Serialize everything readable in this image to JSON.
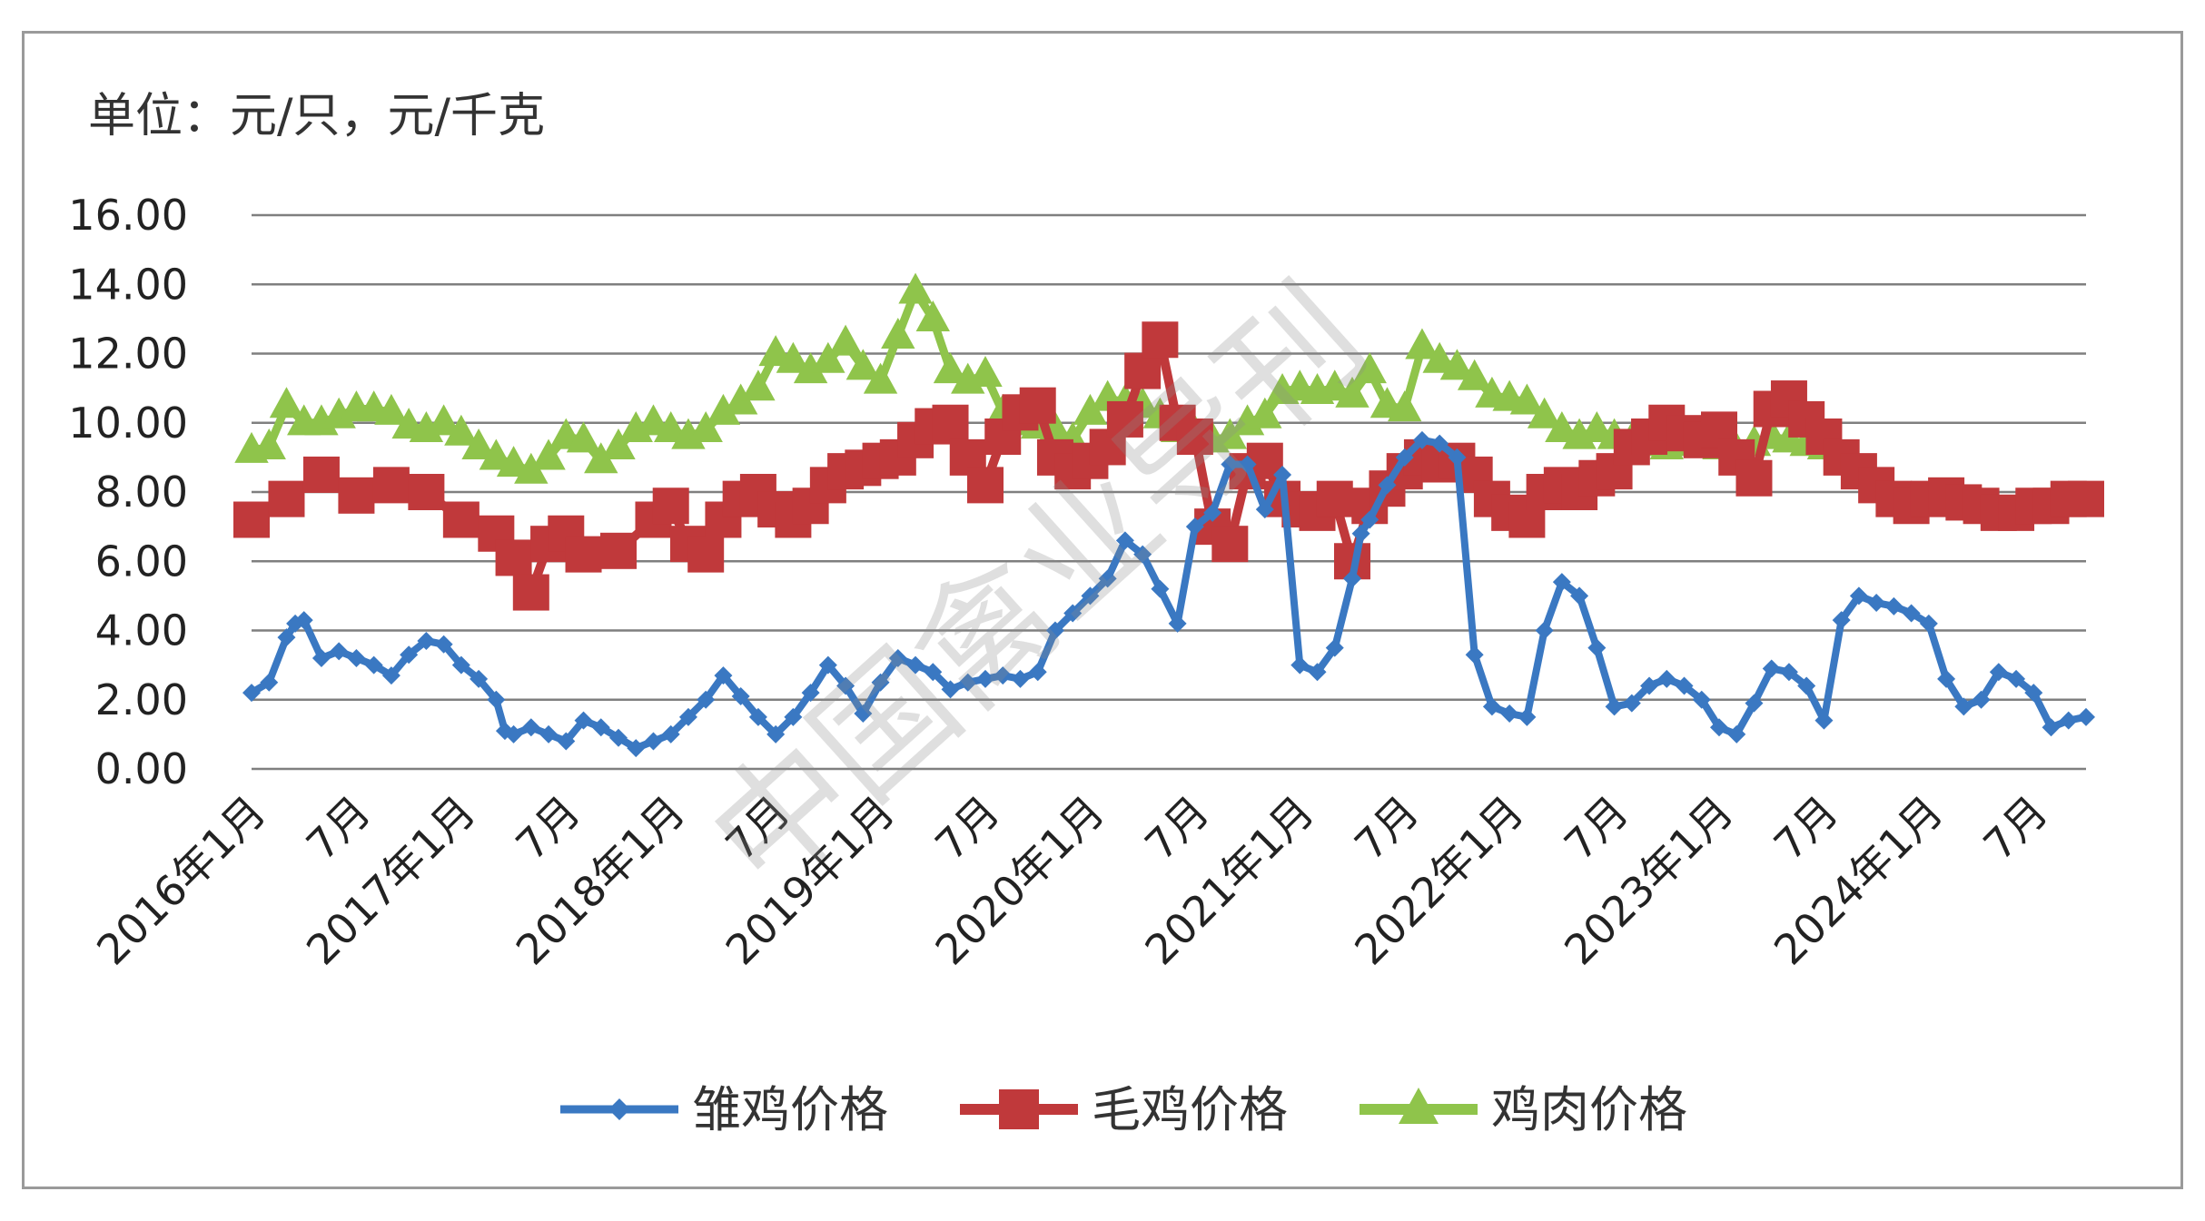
{
  "chart_data": {
    "type": "line",
    "title": "",
    "unit_label": "单位：元/只，元/千克",
    "xlabel": "",
    "ylabel": "",
    "ylim": [
      0,
      16
    ],
    "yticks": [
      "0.00",
      "2.00",
      "4.00",
      "6.00",
      "8.00",
      "10.00",
      "12.00",
      "14.00",
      "16.00"
    ],
    "grid": true,
    "legend_position": "bottom",
    "x_tick_labels": [
      "2016年1月",
      "7月",
      "2017年1月",
      "7月",
      "2018年1月",
      "7月",
      "2019年1月",
      "7月",
      "2020年1月",
      "7月",
      "2021年1月",
      "7月",
      "2022年1月",
      "7月",
      "2023年1月",
      "7月",
      "2024年1月",
      "7月"
    ],
    "x_range_months": [
      0,
      105
    ],
    "series": [
      {
        "name": "雏鸡价格",
        "color": "#3a78c2",
        "marker": "diamond",
        "points": [
          [
            0,
            2.2
          ],
          [
            1,
            2.5
          ],
          [
            2,
            3.8
          ],
          [
            2.5,
            4.2
          ],
          [
            3,
            4.3
          ],
          [
            4,
            3.2
          ],
          [
            5,
            3.4
          ],
          [
            6,
            3.2
          ],
          [
            7,
            3.0
          ],
          [
            8,
            2.7
          ],
          [
            9,
            3.3
          ],
          [
            10,
            3.7
          ],
          [
            11,
            3.6
          ],
          [
            12,
            3.0
          ],
          [
            13,
            2.6
          ],
          [
            14,
            2.0
          ],
          [
            14.5,
            1.1
          ],
          [
            15,
            1.0
          ],
          [
            16,
            1.2
          ],
          [
            17,
            1.0
          ],
          [
            18,
            0.8
          ],
          [
            19,
            1.4
          ],
          [
            20,
            1.2
          ],
          [
            21,
            0.9
          ],
          [
            22,
            0.6
          ],
          [
            23,
            0.8
          ],
          [
            24,
            1.0
          ],
          [
            25,
            1.5
          ],
          [
            26,
            2.0
          ],
          [
            27,
            2.7
          ],
          [
            28,
            2.1
          ],
          [
            29,
            1.5
          ],
          [
            30,
            1.0
          ],
          [
            31,
            1.5
          ],
          [
            32,
            2.2
          ],
          [
            33,
            3.0
          ],
          [
            34,
            2.4
          ],
          [
            35,
            1.6
          ],
          [
            36,
            2.5
          ],
          [
            37,
            3.2
          ],
          [
            38,
            3.0
          ],
          [
            39,
            2.8
          ],
          [
            40,
            2.3
          ],
          [
            41,
            2.5
          ],
          [
            42,
            2.6
          ],
          [
            43,
            2.7
          ],
          [
            44,
            2.6
          ],
          [
            45,
            2.8
          ],
          [
            46,
            4.0
          ],
          [
            47,
            4.5
          ],
          [
            48,
            5.0
          ],
          [
            49,
            5.5
          ],
          [
            50,
            6.6
          ],
          [
            51,
            6.2
          ],
          [
            52,
            5.2
          ],
          [
            53,
            4.2
          ],
          [
            54,
            7.0
          ],
          [
            55,
            7.4
          ],
          [
            56,
            8.8
          ],
          [
            57,
            8.8
          ],
          [
            58,
            7.5
          ],
          [
            59,
            8.5
          ],
          [
            60,
            3.0
          ],
          [
            61,
            2.8
          ],
          [
            62,
            3.5
          ],
          [
            63,
            5.5
          ],
          [
            63.5,
            6.8
          ],
          [
            64,
            7.2
          ],
          [
            65,
            8.2
          ],
          [
            66,
            9.0
          ],
          [
            67,
            9.5
          ],
          [
            68,
            9.4
          ],
          [
            69,
            9.0
          ],
          [
            70,
            3.3
          ],
          [
            71,
            1.8
          ],
          [
            72,
            1.6
          ],
          [
            73,
            1.5
          ],
          [
            74,
            4.0
          ],
          [
            75,
            5.4
          ],
          [
            76,
            5.0
          ],
          [
            77,
            3.5
          ],
          [
            78,
            1.8
          ],
          [
            79,
            1.9
          ],
          [
            80,
            2.4
          ],
          [
            81,
            2.6
          ],
          [
            82,
            2.4
          ],
          [
            83,
            2.0
          ],
          [
            84,
            1.2
          ],
          [
            85,
            1.0
          ],
          [
            86,
            1.9
          ],
          [
            87,
            2.9
          ],
          [
            88,
            2.8
          ],
          [
            89,
            2.4
          ],
          [
            90,
            1.4
          ],
          [
            91,
            4.3
          ],
          [
            92,
            5.0
          ],
          [
            93,
            4.8
          ],
          [
            94,
            4.7
          ],
          [
            95,
            4.5
          ],
          [
            96,
            4.2
          ],
          [
            97,
            2.6
          ],
          [
            98,
            1.8
          ],
          [
            99,
            2.0
          ],
          [
            100,
            2.8
          ],
          [
            101,
            2.6
          ],
          [
            102,
            2.2
          ],
          [
            103,
            1.2
          ],
          [
            104,
            1.4
          ],
          [
            105,
            1.5
          ]
        ]
      },
      {
        "name": "毛鸡价格",
        "color": "#c0393b",
        "marker": "square",
        "points": [
          [
            0,
            7.2
          ],
          [
            2,
            7.8
          ],
          [
            4,
            8.5
          ],
          [
            6,
            7.9
          ],
          [
            8,
            8.2
          ],
          [
            10,
            8.0
          ],
          [
            12,
            7.2
          ],
          [
            14,
            6.8
          ],
          [
            15,
            6.1
          ],
          [
            16,
            5.1
          ],
          [
            17,
            6.5
          ],
          [
            18,
            6.8
          ],
          [
            19,
            6.2
          ],
          [
            21,
            6.3
          ],
          [
            23,
            7.2
          ],
          [
            24,
            7.6
          ],
          [
            25,
            6.5
          ],
          [
            26,
            6.2
          ],
          [
            27,
            7.2
          ],
          [
            28,
            7.8
          ],
          [
            29,
            8.0
          ],
          [
            30,
            7.5
          ],
          [
            31,
            7.2
          ],
          [
            32,
            7.6
          ],
          [
            33,
            8.2
          ],
          [
            34,
            8.6
          ],
          [
            35,
            8.7
          ],
          [
            36,
            8.9
          ],
          [
            37,
            9.0
          ],
          [
            38,
            9.5
          ],
          [
            39,
            9.9
          ],
          [
            40,
            10.0
          ],
          [
            41,
            9.0
          ],
          [
            42,
            8.2
          ],
          [
            43,
            9.6
          ],
          [
            44,
            10.3
          ],
          [
            45,
            10.5
          ],
          [
            46,
            9.0
          ],
          [
            47,
            8.6
          ],
          [
            48,
            8.9
          ],
          [
            49,
            9.3
          ],
          [
            50,
            10.1
          ],
          [
            51,
            11.5
          ],
          [
            52,
            12.4
          ],
          [
            53,
            10.0
          ],
          [
            54,
            9.6
          ],
          [
            55,
            7.0
          ],
          [
            56,
            6.5
          ],
          [
            57,
            8.6
          ],
          [
            58,
            8.9
          ],
          [
            59,
            7.8
          ],
          [
            60,
            7.5
          ],
          [
            61,
            7.4
          ],
          [
            62,
            7.8
          ],
          [
            63,
            6.0
          ],
          [
            64,
            7.6
          ],
          [
            65,
            8.1
          ],
          [
            66,
            8.6
          ],
          [
            67,
            9.0
          ],
          [
            68,
            8.8
          ],
          [
            69,
            8.9
          ],
          [
            70,
            8.5
          ],
          [
            71,
            7.8
          ],
          [
            72,
            7.4
          ],
          [
            73,
            7.2
          ],
          [
            74,
            8.0
          ],
          [
            75,
            8.2
          ],
          [
            76,
            8.0
          ],
          [
            77,
            8.4
          ],
          [
            78,
            8.6
          ],
          [
            79,
            9.3
          ],
          [
            80,
            9.6
          ],
          [
            81,
            10.0
          ],
          [
            82,
            9.7
          ],
          [
            83,
            9.5
          ],
          [
            84,
            9.8
          ],
          [
            85,
            9.0
          ],
          [
            86,
            8.4
          ],
          [
            87,
            10.4
          ],
          [
            88,
            10.7
          ],
          [
            89,
            10.1
          ],
          [
            90,
            9.6
          ],
          [
            91,
            9.0
          ],
          [
            92,
            8.6
          ],
          [
            93,
            8.2
          ],
          [
            94,
            7.8
          ],
          [
            95,
            7.6
          ],
          [
            96,
            7.8
          ],
          [
            97,
            7.9
          ],
          [
            98,
            7.7
          ],
          [
            99,
            7.6
          ],
          [
            100,
            7.4
          ],
          [
            101,
            7.4
          ],
          [
            102,
            7.6
          ],
          [
            103,
            7.6
          ],
          [
            104,
            7.8
          ],
          [
            105,
            7.8
          ]
        ]
      },
      {
        "name": "鸡肉价格",
        "color": "#8fc44b",
        "marker": "triangle",
        "points": [
          [
            0,
            9.2
          ],
          [
            1,
            9.3
          ],
          [
            2,
            10.5
          ],
          [
            3,
            10.0
          ],
          [
            4,
            10.0
          ],
          [
            5,
            10.2
          ],
          [
            6,
            10.4
          ],
          [
            7,
            10.4
          ],
          [
            8,
            10.3
          ],
          [
            9,
            9.9
          ],
          [
            10,
            9.8
          ],
          [
            11,
            10.0
          ],
          [
            12,
            9.7
          ],
          [
            13,
            9.3
          ],
          [
            14,
            9.0
          ],
          [
            15,
            8.8
          ],
          [
            16,
            8.6
          ],
          [
            17,
            9.0
          ],
          [
            18,
            9.6
          ],
          [
            19,
            9.5
          ],
          [
            20,
            8.9
          ],
          [
            21,
            9.3
          ],
          [
            22,
            9.8
          ],
          [
            23,
            10.0
          ],
          [
            24,
            9.8
          ],
          [
            25,
            9.6
          ],
          [
            26,
            9.8
          ],
          [
            27,
            10.3
          ],
          [
            28,
            10.6
          ],
          [
            29,
            11.0
          ],
          [
            30,
            12.0
          ],
          [
            31,
            11.8
          ],
          [
            32,
            11.5
          ],
          [
            33,
            11.8
          ],
          [
            34,
            12.3
          ],
          [
            35,
            11.6
          ],
          [
            36,
            11.2
          ],
          [
            37,
            12.5
          ],
          [
            38,
            13.8
          ],
          [
            39,
            13.0
          ],
          [
            40,
            11.5
          ],
          [
            41,
            11.2
          ],
          [
            42,
            11.4
          ],
          [
            43,
            10.3
          ],
          [
            44,
            10.0
          ],
          [
            45,
            9.9
          ],
          [
            46,
            9.8
          ],
          [
            47,
            9.5
          ],
          [
            48,
            10.3
          ],
          [
            49,
            10.7
          ],
          [
            50,
            10.6
          ],
          [
            51,
            10.5
          ],
          [
            52,
            10.2
          ],
          [
            53,
            9.8
          ],
          [
            54,
            9.7
          ],
          [
            55,
            9.5
          ],
          [
            56,
            9.6
          ],
          [
            57,
            10.0
          ],
          [
            58,
            10.2
          ],
          [
            59,
            10.9
          ],
          [
            60,
            11.0
          ],
          [
            61,
            10.9
          ],
          [
            62,
            11.0
          ],
          [
            63,
            10.8
          ],
          [
            64,
            11.5
          ],
          [
            65,
            10.5
          ],
          [
            66,
            10.4
          ],
          [
            67,
            12.2
          ],
          [
            68,
            11.8
          ],
          [
            69,
            11.6
          ],
          [
            70,
            11.3
          ],
          [
            71,
            10.8
          ],
          [
            72,
            10.7
          ],
          [
            73,
            10.6
          ],
          [
            74,
            10.2
          ],
          [
            75,
            9.8
          ],
          [
            76,
            9.6
          ],
          [
            77,
            9.8
          ],
          [
            78,
            9.6
          ],
          [
            79,
            9.5
          ],
          [
            80,
            9.4
          ],
          [
            81,
            9.3
          ],
          [
            82,
            9.4
          ],
          [
            83,
            9.6
          ],
          [
            84,
            9.3
          ],
          [
            85,
            9.2
          ],
          [
            86,
            9.4
          ],
          [
            87,
            9.6
          ],
          [
            88,
            9.5
          ],
          [
            89,
            9.4
          ],
          [
            90,
            9.3
          ]
        ]
      }
    ]
  },
  "watermark": "中国禽业导刊"
}
